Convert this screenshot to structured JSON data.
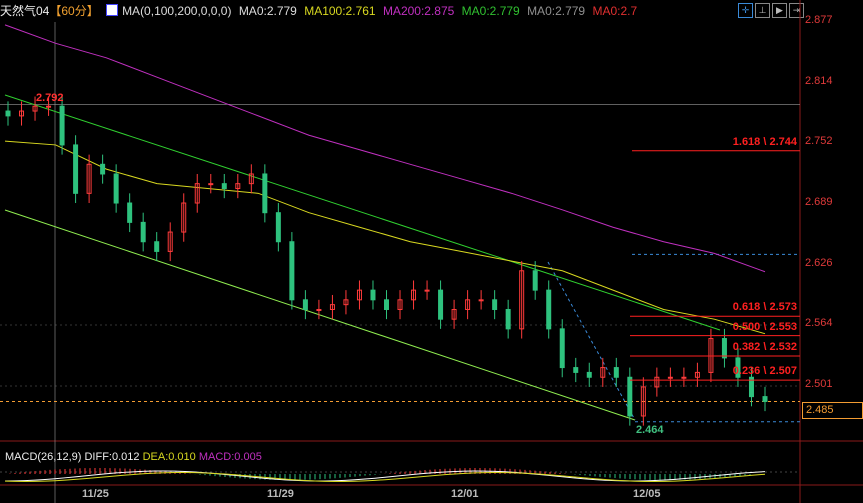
{
  "header": {
    "symbol": "天然气04",
    "period": "【60分】",
    "indicator": "MA(0,100,200,0,0,0)",
    "ma0": "MA0:2.779",
    "ma100": "MA100:2.761",
    "ma200": "MA200:2.875",
    "ma0_green": "MA0:2.779",
    "ma0_gray": "MA0:2.779",
    "ma0_red": "MA0:2.7",
    "colors": {
      "ma100": "#d8d820",
      "ma200": "#c030c0",
      "green": "#30c030",
      "gray": "#909090",
      "red": "#e03030"
    },
    "toolbar": [
      "crosshair-icon",
      "chart-mode-icon",
      "play-icon",
      "exit-icon"
    ]
  },
  "price_axis": [
    "2.877",
    "2.814",
    "2.752",
    "2.689",
    "2.626",
    "2.564",
    "2.501"
  ],
  "current_price": "2.485",
  "high_label": "2.792",
  "low_label": "2.464",
  "fib": [
    {
      "label": "1.618 \\ 2.744",
      "price": 2.744
    },
    {
      "label": "0.618 \\ 2.573",
      "price": 2.573
    },
    {
      "label": "0.500 \\ 2.553",
      "price": 2.553
    },
    {
      "label": "0.382 \\ 2.532",
      "price": 2.532
    },
    {
      "label": "0.236 \\ 2.507",
      "price": 2.507
    }
  ],
  "time_axis": [
    "11/25",
    "11/29",
    "12/01",
    "12/05"
  ],
  "macd": {
    "title": "MACD(26,12,9)",
    "diff": "DIFF:0.012",
    "dea": "DEA:0.010",
    "macd": "MACD:0.005"
  },
  "chart_data": {
    "type": "candlestick",
    "ylim": [
      2.45,
      2.88
    ],
    "closes": [
      2.78,
      2.785,
      2.79,
      2.79,
      2.75,
      2.7,
      2.73,
      2.72,
      2.69,
      2.67,
      2.65,
      2.64,
      2.66,
      2.69,
      2.71,
      2.71,
      2.705,
      2.71,
      2.72,
      2.68,
      2.65,
      2.59,
      2.58,
      2.58,
      2.585,
      2.59,
      2.6,
      2.59,
      2.58,
      2.59,
      2.6,
      2.6,
      2.57,
      2.58,
      2.59,
      2.59,
      2.58,
      2.56,
      2.62,
      2.6,
      2.56,
      2.52,
      2.515,
      2.51,
      2.52,
      2.51,
      2.47,
      2.5,
      2.51,
      2.51,
      2.51,
      2.515,
      2.55,
      2.53,
      2.51,
      2.49,
      2.485
    ],
    "ma100": [
      2.754,
      2.75,
      2.725,
      2.71,
      2.705,
      2.7,
      2.68,
      2.665,
      2.65,
      2.64,
      2.63,
      2.62,
      2.6,
      2.58,
      2.57,
      2.555
    ],
    "ma200": [
      2.874,
      2.855,
      2.84,
      2.82,
      2.8,
      2.78,
      2.76,
      2.745,
      2.73,
      2.715,
      2.7,
      2.683,
      2.665,
      2.65,
      2.638,
      2.619
    ]
  }
}
